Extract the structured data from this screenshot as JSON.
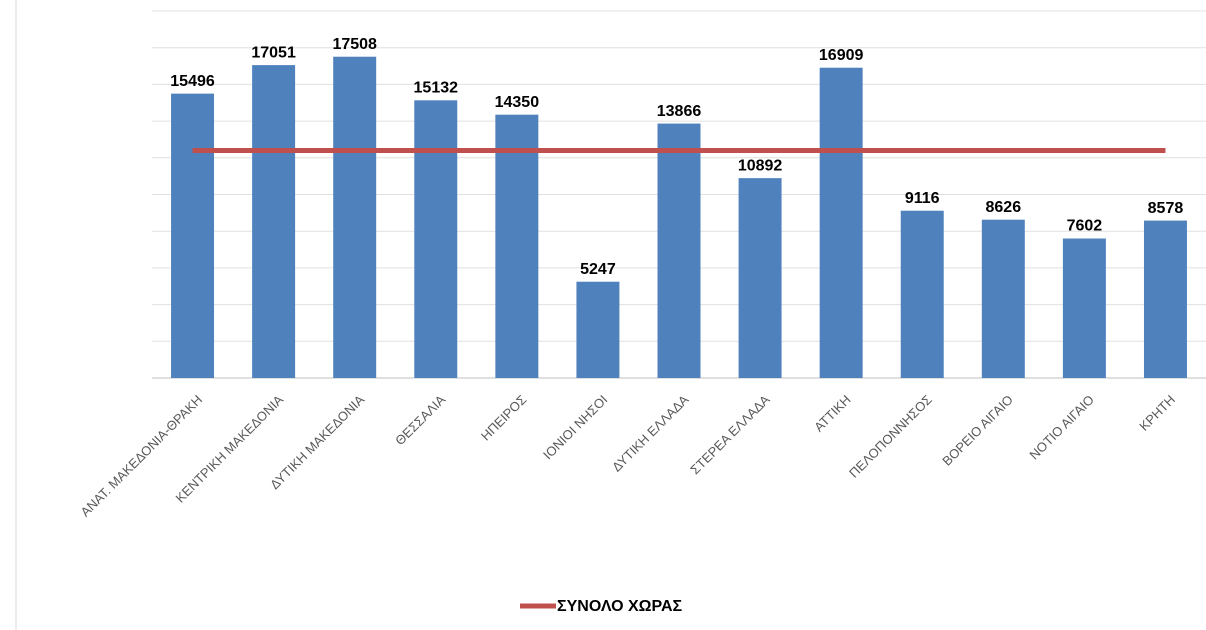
{
  "chart_data": {
    "type": "bar",
    "categories": [
      "ΑΝΑΤ. ΜΑΚΕΔΟΝΙΑ-ΘΡΑΚΗ",
      "ΚΕΝΤΡΙΚΗ ΜΑΚΕΔΟΝΙΑ",
      "ΔΥΤΙΚΗ ΜΑΚΕΔΟΝΙΑ",
      "ΘΕΣΣΑΛΙΑ",
      "ΗΠΕΙΡΟΣ",
      "ΙΟΝΙΟΙ ΝΗΣΟΙ",
      "ΔΥΤΙΚΗ ΕΛΛΑΔΑ",
      "ΣΤΕΡΕΑ ΕΛΛΑΔΑ",
      "ΑΤΤΙΚΗ",
      "ΠΕΛΟΠΟΝΝΗΣΟΣ",
      "ΒΟΡΕΙΟ ΑΙΓΑΙΟ",
      "ΝΟΤΙΟ ΑΙΓΑΙΟ",
      "ΚΡΗΤΗ"
    ],
    "series": [
      {
        "name": null,
        "type": "bar",
        "color": "#4f81bd",
        "data_labels": true,
        "values": [
          15496,
          17051,
          17508,
          15132,
          14350,
          5247,
          13866,
          10892,
          16909,
          9116,
          8626,
          7602,
          8578
        ]
      },
      {
        "name": "ΣΥΝΟΛΟ ΧΩΡΑΣ",
        "type": "line",
        "color": "#c0504d",
        "data_labels": false,
        "values": [
          12400,
          12400,
          12400,
          12400,
          12400,
          12400,
          12400,
          12400,
          12400,
          12400,
          12400,
          12400,
          12400
        ]
      }
    ],
    "ylim": [
      0,
      20000
    ],
    "yticks": [
      0,
      2000,
      4000,
      6000,
      8000,
      10000,
      12000,
      14000,
      16000,
      18000,
      20000
    ],
    "ytick_labels": false,
    "grid": true,
    "legend": "bottom"
  }
}
